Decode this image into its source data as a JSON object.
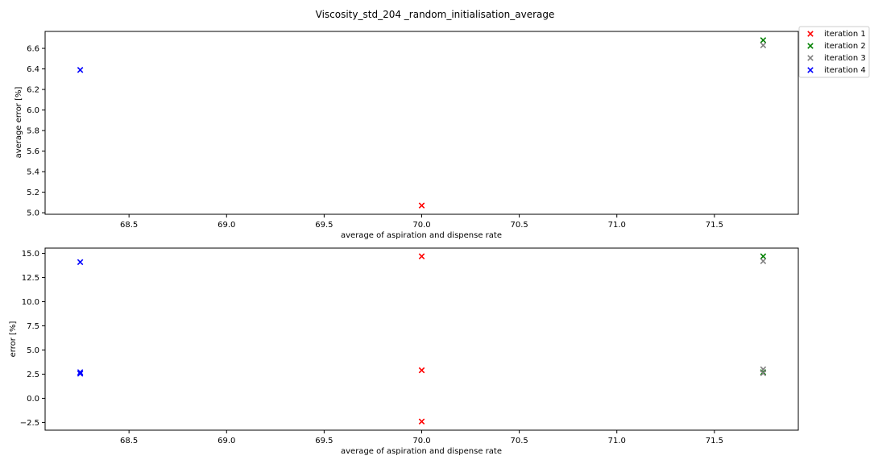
{
  "chart_data": {
    "type": "scatter",
    "title": "Viscosity_std_204 _random_initialisation_average",
    "legend": {
      "placement": "outside top-right",
      "entries": [
        "iteration 1",
        "iteration 2",
        "iteration 3",
        "iteration 4"
      ]
    },
    "series_colors": {
      "iteration 1": "#ff0000",
      "iteration 2": "#008000",
      "iteration 3": "#808080",
      "iteration 4": "#0000ff"
    },
    "marker": "x",
    "panels": [
      {
        "xlabel": "average of aspiration and dispense rate",
        "ylabel": "average error [%]",
        "xlim": [
          68.07,
          71.93
        ],
        "ylim": [
          4.985,
          6.765
        ],
        "xticks": [
          68.5,
          69.0,
          69.5,
          70.0,
          70.5,
          71.0,
          71.5
        ],
        "xtick_labels": [
          "68.5",
          "69.0",
          "69.5",
          "70.0",
          "70.5",
          "71.0",
          "71.5"
        ],
        "yticks": [
          5.0,
          5.2,
          5.4,
          5.6,
          5.8,
          6.0,
          6.2,
          6.4,
          6.6
        ],
        "ytick_labels": [
          "5.0",
          "5.2",
          "5.4",
          "5.6",
          "5.8",
          "6.0",
          "6.2",
          "6.4",
          "6.6"
        ],
        "grid": false,
        "series": [
          {
            "name": "iteration 1",
            "points": [
              {
                "x": 70.0,
                "y": 5.07
              }
            ]
          },
          {
            "name": "iteration 2",
            "points": [
              {
                "x": 71.75,
                "y": 6.68
              }
            ]
          },
          {
            "name": "iteration 3",
            "points": [
              {
                "x": 71.75,
                "y": 6.63
              }
            ]
          },
          {
            "name": "iteration 4",
            "points": [
              {
                "x": 68.25,
                "y": 6.39
              }
            ]
          }
        ]
      },
      {
        "xlabel": "average of aspiration and dispense rate",
        "ylabel": "error [%]",
        "xlim": [
          68.07,
          71.93
        ],
        "ylim": [
          -3.3,
          15.55
        ],
        "xticks": [
          68.5,
          69.0,
          69.5,
          70.0,
          70.5,
          71.0,
          71.5
        ],
        "xtick_labels": [
          "68.5",
          "69.0",
          "69.5",
          "70.0",
          "70.5",
          "71.0",
          "71.5"
        ],
        "yticks": [
          -2.5,
          0.0,
          2.5,
          5.0,
          7.5,
          10.0,
          12.5,
          15.0
        ],
        "ytick_labels": [
          "−2.5",
          "0.0",
          "2.5",
          "5.0",
          "7.5",
          "10.0",
          "12.5",
          "15.0"
        ],
        "grid": false,
        "series": [
          {
            "name": "iteration 1",
            "points": [
              {
                "x": 70.0,
                "y": 14.7
              },
              {
                "x": 70.0,
                "y": 2.9
              },
              {
                "x": 70.0,
                "y": -2.4
              }
            ]
          },
          {
            "name": "iteration 2",
            "points": [
              {
                "x": 71.75,
                "y": 14.7
              },
              {
                "x": 71.75,
                "y": 2.7
              }
            ]
          },
          {
            "name": "iteration 3",
            "points": [
              {
                "x": 71.75,
                "y": 14.2
              },
              {
                "x": 71.75,
                "y": 3.0
              },
              {
                "x": 71.75,
                "y": 2.6
              }
            ]
          },
          {
            "name": "iteration 4",
            "points": [
              {
                "x": 68.25,
                "y": 14.1
              },
              {
                "x": 68.25,
                "y": 2.7
              },
              {
                "x": 68.25,
                "y": 2.55
              }
            ]
          }
        ]
      }
    ]
  }
}
